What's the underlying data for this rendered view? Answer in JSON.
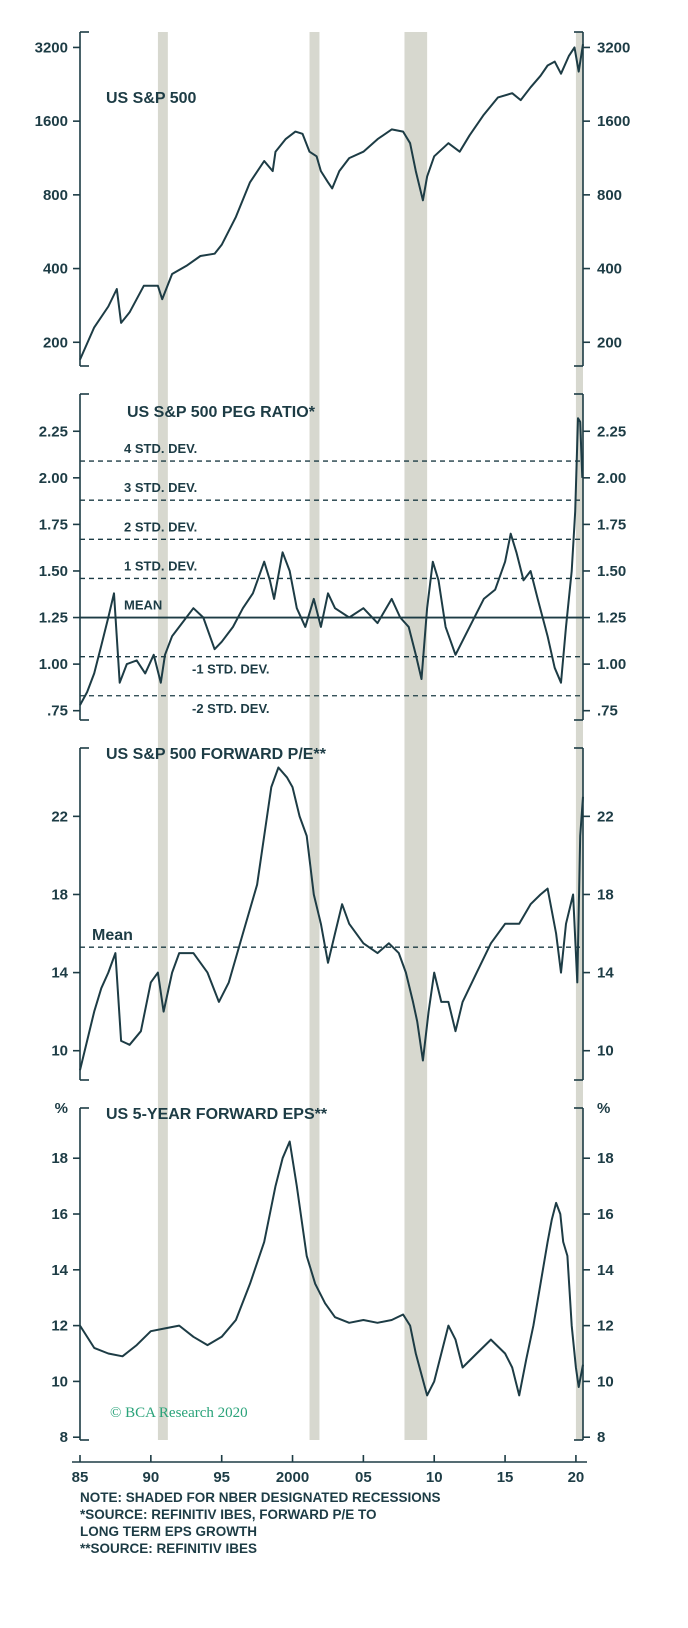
{
  "colors": {
    "ink": "#1d3c45",
    "recession": "#d7d8cf",
    "brand": "#2aa37a"
  },
  "x_axis": {
    "ticks": [
      {
        "value": 1985,
        "label": "85"
      },
      {
        "value": 1990,
        "label": "90"
      },
      {
        "value": 1995,
        "label": "95"
      },
      {
        "value": 2000,
        "label": "2000"
      },
      {
        "value": 2005,
        "label": "05"
      },
      {
        "value": 2010,
        "label": "10"
      },
      {
        "value": 2015,
        "label": "15"
      },
      {
        "value": 2020,
        "label": "20"
      }
    ],
    "range": [
      1985,
      2020.5
    ]
  },
  "recessions": [
    [
      1990.5,
      1991.2
    ],
    [
      2001.2,
      2001.9
    ],
    [
      2007.9,
      2009.5
    ],
    [
      2020.0,
      2020.5
    ]
  ],
  "brand": {
    "text": "© BCA Research 2020"
  },
  "notes": [
    "NOTE: SHADED FOR NBER DESIGNATED RECESSIONS",
    "*SOURCE: REFINITIV IBES, FORWARD P/E TO",
    "LONG TERM EPS GROWTH",
    "**SOURCE: REFINITIV IBES"
  ],
  "chart_data": [
    {
      "type": "line",
      "title": "US S&P 500",
      "scale": "log",
      "ylim": [
        160,
        3700
      ],
      "yticks": [
        {
          "value": 200,
          "label": "200"
        },
        {
          "value": 400,
          "label": "400"
        },
        {
          "value": 800,
          "label": "800"
        },
        {
          "value": 1600,
          "label": "1600"
        },
        {
          "value": 3200,
          "label": "3200"
        }
      ],
      "series": [
        {
          "x": [
            1985,
            1986,
            1987,
            1987.6,
            1987.9,
            1988.5,
            1989.5,
            1990.5,
            1990.8,
            1991.5,
            1992.5,
            1993.5,
            1994.5,
            1995,
            1996,
            1997,
            1998,
            1998.6,
            1998.8,
            1999.5,
            2000.2,
            2000.7,
            2001.2,
            2001.7,
            2002,
            2002.5,
            2002.8,
            2003.3,
            2004,
            2005,
            2006,
            2007,
            2007.8,
            2008.3,
            2008.7,
            2009.2,
            2009.5,
            2010,
            2011,
            2011.8,
            2012.5,
            2013.5,
            2014.5,
            2015.5,
            2016.1,
            2016.8,
            2017.5,
            2018,
            2018.5,
            2018.95,
            2019.5,
            2019.9,
            2020.2,
            2020.5
          ],
          "values": [
            170,
            230,
            280,
            330,
            240,
            265,
            340,
            340,
            300,
            380,
            410,
            450,
            460,
            500,
            650,
            900,
            1100,
            1000,
            1200,
            1350,
            1450,
            1420,
            1200,
            1150,
            1000,
            900,
            850,
            1000,
            1130,
            1200,
            1350,
            1480,
            1450,
            1300,
            1000,
            760,
            950,
            1150,
            1300,
            1200,
            1400,
            1700,
            2000,
            2080,
            1950,
            2200,
            2450,
            2700,
            2800,
            2500,
            2950,
            3200,
            2550,
            3300
          ]
        }
      ]
    },
    {
      "type": "line",
      "title": "US S&P 500 PEG RATIO*",
      "ylim": [
        0.7,
        2.45
      ],
      "yticks": [
        {
          "value": 0.75,
          "label": ".75"
        },
        {
          "value": 1.0,
          "label": "1.00"
        },
        {
          "value": 1.25,
          "label": "1.25"
        },
        {
          "value": 1.5,
          "label": "1.50"
        },
        {
          "value": 1.75,
          "label": "1.75"
        },
        {
          "value": 2.0,
          "label": "2.00"
        },
        {
          "value": 2.25,
          "label": "2.25"
        }
      ],
      "reference_lines": [
        {
          "value": 2.09,
          "label": "4 STD. DEV.",
          "style": "dashed",
          "label_side": "above"
        },
        {
          "value": 1.88,
          "label": "3 STD. DEV.",
          "style": "dashed",
          "label_side": "above"
        },
        {
          "value": 1.67,
          "label": "2 STD. DEV.",
          "style": "dashed",
          "label_side": "above"
        },
        {
          "value": 1.46,
          "label": "1 STD. DEV.",
          "style": "dashed",
          "label_side": "above"
        },
        {
          "value": 1.25,
          "label": "MEAN",
          "style": "solid",
          "label_side": "above"
        },
        {
          "value": 1.04,
          "label": "-1 STD. DEV.",
          "style": "dashed",
          "label_side": "below"
        },
        {
          "value": 0.83,
          "label": "-2 STD. DEV.",
          "style": "dashed",
          "label_side": "below"
        }
      ],
      "series": [
        {
          "x": [
            1985,
            1985.5,
            1986,
            1986.5,
            1987,
            1987.4,
            1987.8,
            1988.3,
            1989,
            1989.6,
            1990.2,
            1990.7,
            1991,
            1991.5,
            1992,
            1993,
            1993.7,
            1994.5,
            1995,
            1995.8,
            1996.5,
            1997.2,
            1998,
            1998.4,
            1998.7,
            1999.3,
            1999.8,
            2000.3,
            2000.9,
            2001.5,
            2002,
            2002.5,
            2003,
            2004,
            2005,
            2006,
            2007,
            2007.6,
            2008.2,
            2008.7,
            2009.1,
            2009.5,
            2009.9,
            2010.3,
            2010.8,
            2011.5,
            2012.5,
            2013.5,
            2014.3,
            2015,
            2015.4,
            2015.8,
            2016.3,
            2016.8,
            2017.3,
            2018,
            2018.5,
            2018.95,
            2019.3,
            2019.7,
            2019.95,
            2020.15,
            2020.3,
            2020.45
          ],
          "values": [
            0.78,
            0.85,
            0.95,
            1.1,
            1.25,
            1.38,
            0.9,
            1.0,
            1.02,
            0.95,
            1.05,
            0.9,
            1.05,
            1.15,
            1.2,
            1.3,
            1.25,
            1.08,
            1.12,
            1.2,
            1.3,
            1.38,
            1.55,
            1.45,
            1.35,
            1.6,
            1.5,
            1.3,
            1.2,
            1.35,
            1.2,
            1.38,
            1.3,
            1.25,
            1.3,
            1.22,
            1.35,
            1.25,
            1.2,
            1.05,
            0.92,
            1.3,
            1.55,
            1.45,
            1.2,
            1.05,
            1.2,
            1.35,
            1.4,
            1.55,
            1.7,
            1.6,
            1.45,
            1.5,
            1.35,
            1.15,
            0.98,
            0.9,
            1.2,
            1.5,
            1.82,
            2.32,
            2.3,
            2.0
          ]
        }
      ]
    },
    {
      "type": "line",
      "title": "US S&P 500 FORWARD P/E**",
      "ylim": [
        8.5,
        25.5
      ],
      "yticks": [
        {
          "value": 10,
          "label": "10"
        },
        {
          "value": 14,
          "label": "14"
        },
        {
          "value": 18,
          "label": "18"
        },
        {
          "value": 22,
          "label": "22"
        }
      ],
      "reference_lines": [
        {
          "value": 15.3,
          "label": "Mean",
          "style": "dashed",
          "label_side": "above"
        }
      ],
      "series": [
        {
          "x": [
            1985,
            1985.5,
            1986,
            1986.5,
            1987,
            1987.5,
            1987.9,
            1988.5,
            1989.3,
            1990,
            1990.5,
            1990.9,
            1991.5,
            1992,
            1993,
            1994,
            1994.8,
            1995.5,
            1996.5,
            1997.5,
            1998,
            1998.5,
            1999,
            1999.6,
            2000,
            2000.5,
            2001,
            2001.5,
            2002,
            2002.5,
            2003,
            2003.5,
            2004,
            2005,
            2006,
            2006.8,
            2007.5,
            2008,
            2008.5,
            2008.8,
            2009.2,
            2009.6,
            2010,
            2010.5,
            2011,
            2011.5,
            2012,
            2013,
            2014,
            2015,
            2016,
            2016.8,
            2017.5,
            2018,
            2018.6,
            2018.95,
            2019.3,
            2019.8,
            2020.1,
            2020.3,
            2020.5
          ],
          "values": [
            9.0,
            10.5,
            12.0,
            13.2,
            14.0,
            15.0,
            10.5,
            10.3,
            11.0,
            13.5,
            14.0,
            12.0,
            14.0,
            15.0,
            15.0,
            14.0,
            12.5,
            13.5,
            16.0,
            18.5,
            21.0,
            23.5,
            24.5,
            24.0,
            23.5,
            22.0,
            21.0,
            18.0,
            16.5,
            14.5,
            16.0,
            17.5,
            16.5,
            15.5,
            15.0,
            15.5,
            15.0,
            14.0,
            12.5,
            11.5,
            9.5,
            12.0,
            14.0,
            12.5,
            12.5,
            11.0,
            12.5,
            14.0,
            15.5,
            16.5,
            16.5,
            17.5,
            18.0,
            18.3,
            16.0,
            14.0,
            16.5,
            18.0,
            13.5,
            21.0,
            23.0
          ]
        }
      ]
    },
    {
      "type": "line",
      "title": "US 5-YEAR FORWARD EPS**",
      "ylabel": "%",
      "ylim": [
        7.9,
        19.8
      ],
      "yticks": [
        {
          "value": 8,
          "label": "8"
        },
        {
          "value": 10,
          "label": "10"
        },
        {
          "value": 12,
          "label": "12"
        },
        {
          "value": 14,
          "label": "14"
        },
        {
          "value": 16,
          "label": "16"
        },
        {
          "value": 18,
          "label": "18"
        }
      ],
      "series": [
        {
          "x": [
            1985,
            1986,
            1987,
            1988,
            1989,
            1990,
            1991,
            1992,
            1993,
            1994,
            1995,
            1996,
            1997,
            1998,
            1998.8,
            1999.3,
            1999.8,
            2000.3,
            2001,
            2001.6,
            2002.3,
            2003,
            2004,
            2005,
            2006,
            2007,
            2007.8,
            2008.3,
            2008.7,
            2009.5,
            2010,
            2010.5,
            2011,
            2011.5,
            2012,
            2013,
            2014,
            2015,
            2015.5,
            2016,
            2016.5,
            2017,
            2017.5,
            2018,
            2018.3,
            2018.6,
            2018.9,
            2019.1,
            2019.4,
            2019.7,
            2020,
            2020.2,
            2020.5
          ],
          "values": [
            12.0,
            11.2,
            11.0,
            10.9,
            11.3,
            11.8,
            11.9,
            12.0,
            11.6,
            11.3,
            11.6,
            12.2,
            13.5,
            15.0,
            17.0,
            18.0,
            18.6,
            17.0,
            14.5,
            13.5,
            12.8,
            12.3,
            12.1,
            12.2,
            12.1,
            12.2,
            12.4,
            12.0,
            11.0,
            9.5,
            10.0,
            11.0,
            12.0,
            11.5,
            10.5,
            11.0,
            11.5,
            11.0,
            10.5,
            9.5,
            10.8,
            12.0,
            13.5,
            15.0,
            15.8,
            16.4,
            16.0,
            15.0,
            14.5,
            12.0,
            10.5,
            9.8,
            10.6
          ]
        }
      ]
    }
  ]
}
